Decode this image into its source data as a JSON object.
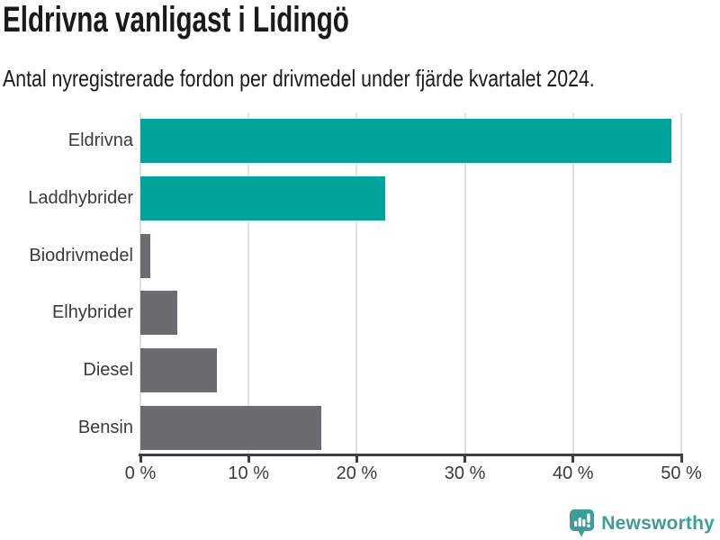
{
  "chart": {
    "title": "Eldrivna vanligast i Lidingö",
    "subtitle": "Antal nyregistrerade fordon per drivmedel under fjärde kvartalet 2024."
  },
  "chart_data": {
    "type": "bar",
    "orientation": "horizontal",
    "title": "Eldrivna vanligast i Lidingö",
    "subtitle": "Antal nyregistrerade fordon per drivmedel under fjärde kvartalet 2024.",
    "categories": [
      "Eldrivna",
      "Laddhybrider",
      "Biodrivmedel",
      "Elhybrider",
      "Diesel",
      "Bensin"
    ],
    "values": [
      49.1,
      22.6,
      0.9,
      3.4,
      7.1,
      16.7
    ],
    "unit": "%",
    "bar_colors": [
      "#00a39b",
      "#00a39b",
      "#6b6b70",
      "#6b6b70",
      "#6b6b70",
      "#6b6b70"
    ],
    "xlim": [
      0,
      50
    ],
    "x_ticks": [
      0,
      10,
      20,
      30,
      40,
      50
    ],
    "x_tick_labels": [
      "0 %",
      "10 %",
      "20 %",
      "30 %",
      "40 %",
      "50 %"
    ],
    "grid": "vertical-only",
    "legend": "none",
    "xlabel": "",
    "ylabel": ""
  },
  "colors": {
    "accent_teal": "#00a39b",
    "bar_gray": "#6b6b70",
    "gridline": "#e2e2e2",
    "axis": "#3f3f43",
    "text_dark": "#1a1a1a",
    "label_gray": "#3a3a3a",
    "logo_teal": "#3e9d98"
  },
  "footer": {
    "brand": "Newsworthy",
    "logo_icon": "speech-bubble-with-bar-chart-and-exclamation"
  }
}
